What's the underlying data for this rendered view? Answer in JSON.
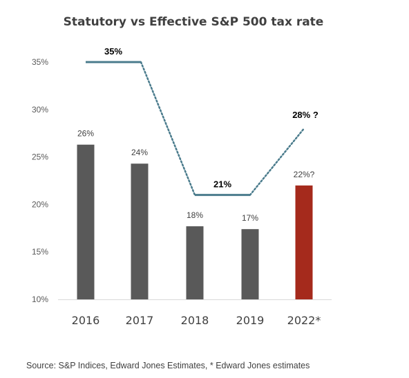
{
  "title": "Statutory  vs Effective S&P 500 tax rate",
  "source": "Source: S&P Indices, Edward Jones Estimates, * Edward Jones estimates",
  "colors": {
    "bar": "#595959",
    "highlight": "#a52a1c",
    "line": "#4a7b8c",
    "axis": "#d9d9d9"
  },
  "chart_data": {
    "type": "bar",
    "categories": [
      "2016",
      "2017",
      "2018",
      "2019",
      "2022*"
    ],
    "ylim": [
      10,
      35
    ],
    "yticks": [
      "10%",
      "15%",
      "20%",
      "25%",
      "30%",
      "35%"
    ],
    "series": [
      {
        "values": [
          26.3,
          24.3,
          17.7,
          17.4,
          22
        ],
        "data_labels": [
          "26%",
          "24%",
          "18%",
          "17%",
          "22%?"
        ]
      },
      {
        "type": "line",
        "values": [
          35,
          35,
          21,
          21,
          28
        ],
        "segments_dotted": [
          false,
          true,
          false,
          true
        ],
        "data_labels": [
          "35%",
          "21%",
          "28% ?"
        ]
      }
    ]
  }
}
